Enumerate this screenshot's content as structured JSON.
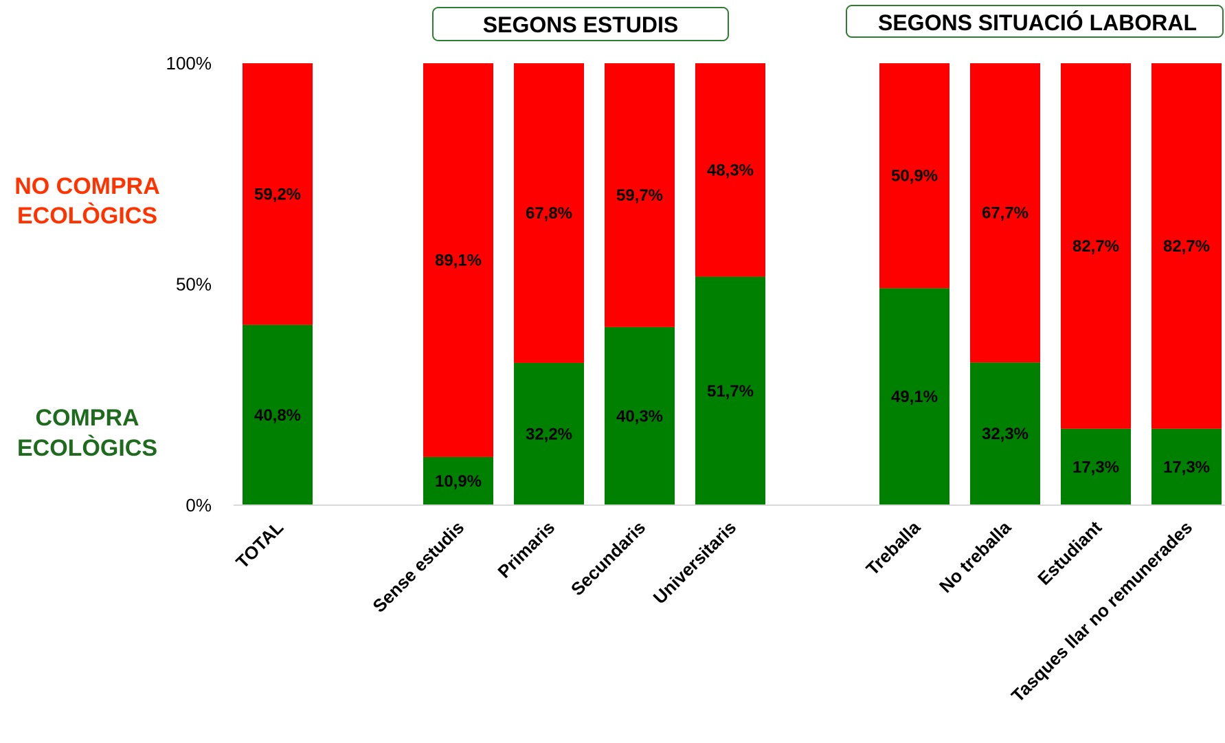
{
  "chart_data": {
    "type": "bar",
    "stacked": true,
    "group_titles": [
      "SEGONS ESTUDIS",
      "SEGONS SITUACIÓ LABORAL"
    ],
    "categories": [
      "TOTAL",
      "Sense estudis",
      "Primaris",
      "Secundaris",
      "Universitaris",
      "Treballa",
      "No treballa",
      "Estudiant",
      "Tasques llar no remunerades"
    ],
    "series": [
      {
        "name": "COMPRA ECOLÒGICS",
        "color": "#008000",
        "values": [
          40.8,
          10.9,
          32.2,
          40.3,
          51.7,
          49.1,
          32.3,
          17.3,
          17.3
        ],
        "labels": [
          "40,8%",
          "10,9%",
          "32,2%",
          "40,3%",
          "51,7%",
          "49,1%",
          "32,3%",
          "17,3%",
          "17,3%"
        ]
      },
      {
        "name": "NO COMPRA ECOLÒGICS",
        "color": "#ff0000",
        "values": [
          59.2,
          89.1,
          67.8,
          59.7,
          48.3,
          50.9,
          67.7,
          82.7,
          82.7
        ],
        "labels": [
          "59,2%",
          "89,1%",
          "67,8%",
          "59,7%",
          "48,3%",
          "50,9%",
          "67,7%",
          "82,7%",
          "82,7%"
        ]
      }
    ],
    "legend": {
      "no_compra": [
        "NO COMPRA",
        "ECOLÒGICS"
      ],
      "compra": [
        "COMPRA",
        "ECOLÒGICS"
      ],
      "no_compra_color": "#ff3300",
      "compra_color": "#1e6b1e",
      "placement": "left"
    },
    "ylim": [
      0,
      100
    ],
    "yticks": [
      "0%",
      "50%",
      "100%"
    ],
    "grid": false
  }
}
